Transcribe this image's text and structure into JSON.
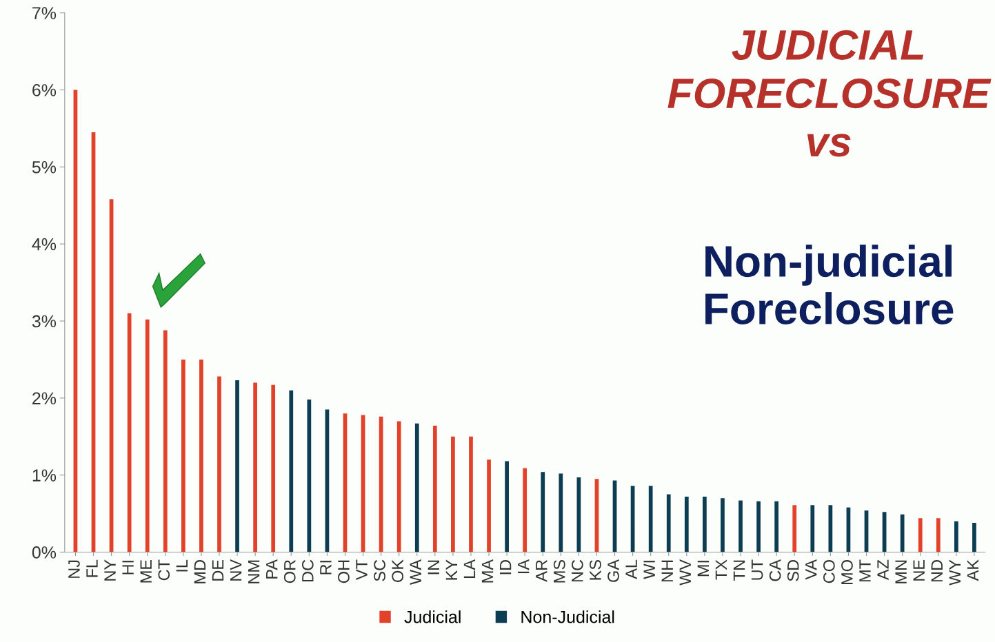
{
  "chart_data": {
    "type": "bar",
    "title": "JUDICIAL\nFORECLOSURE\nvs",
    "subtitle": "Non-judicial\nForeclosure",
    "categories": [
      "NJ",
      "FL",
      "NY",
      "HI",
      "ME",
      "CT",
      "IL",
      "MD",
      "DE",
      "NV",
      "NM",
      "PA",
      "OR",
      "DC",
      "RI",
      "OH",
      "VT",
      "SC",
      "OK",
      "WA",
      "IN",
      "KY",
      "LA",
      "MA",
      "ID",
      "IA",
      "AR",
      "MS",
      "NC",
      "KS",
      "GA",
      "AL",
      "WI",
      "NH",
      "WV",
      "MI",
      "TX",
      "TN",
      "UT",
      "CA",
      "SD",
      "VA",
      "CO",
      "MO",
      "MT",
      "AZ",
      "MN",
      "NE",
      "ND",
      "WY",
      "AK"
    ],
    "series": [
      {
        "name": "Judicial",
        "color": "#e2412a",
        "values": [
          6.0,
          5.45,
          4.58,
          3.1,
          3.02,
          2.88,
          2.5,
          2.5,
          2.28,
          null,
          2.2,
          2.17,
          null,
          null,
          null,
          1.8,
          1.78,
          1.76,
          1.7,
          null,
          1.64,
          1.5,
          1.5,
          1.2,
          null,
          1.09,
          null,
          null,
          null,
          0.95,
          null,
          null,
          null,
          null,
          null,
          null,
          null,
          null,
          null,
          null,
          0.61,
          null,
          null,
          null,
          null,
          null,
          null,
          0.44,
          0.44,
          null,
          null
        ]
      },
      {
        "name": "Non-Judicial",
        "color": "#0d3d52",
        "values": [
          null,
          null,
          null,
          null,
          null,
          null,
          null,
          null,
          null,
          2.23,
          null,
          null,
          2.1,
          1.98,
          1.85,
          null,
          null,
          null,
          null,
          1.67,
          null,
          null,
          null,
          null,
          1.18,
          null,
          1.04,
          1.02,
          0.97,
          null,
          0.93,
          0.86,
          0.86,
          0.75,
          0.72,
          0.72,
          0.7,
          0.67,
          0.66,
          0.66,
          null,
          0.61,
          0.61,
          0.58,
          0.54,
          0.52,
          0.49,
          null,
          null,
          0.4,
          0.38
        ]
      }
    ],
    "ylim": [
      0,
      7
    ],
    "yticks": [
      {
        "value": 0,
        "label": "0%"
      },
      {
        "value": 1,
        "label": "1%"
      },
      {
        "value": 2,
        "label": "2%"
      },
      {
        "value": 3,
        "label": "3%"
      },
      {
        "value": 4,
        "label": "4%"
      },
      {
        "value": 5,
        "label": "5%"
      },
      {
        "value": 6,
        "label": "6%"
      },
      {
        "value": 7,
        "label": "7%"
      }
    ],
    "grid": false,
    "legend": "bottom"
  }
}
